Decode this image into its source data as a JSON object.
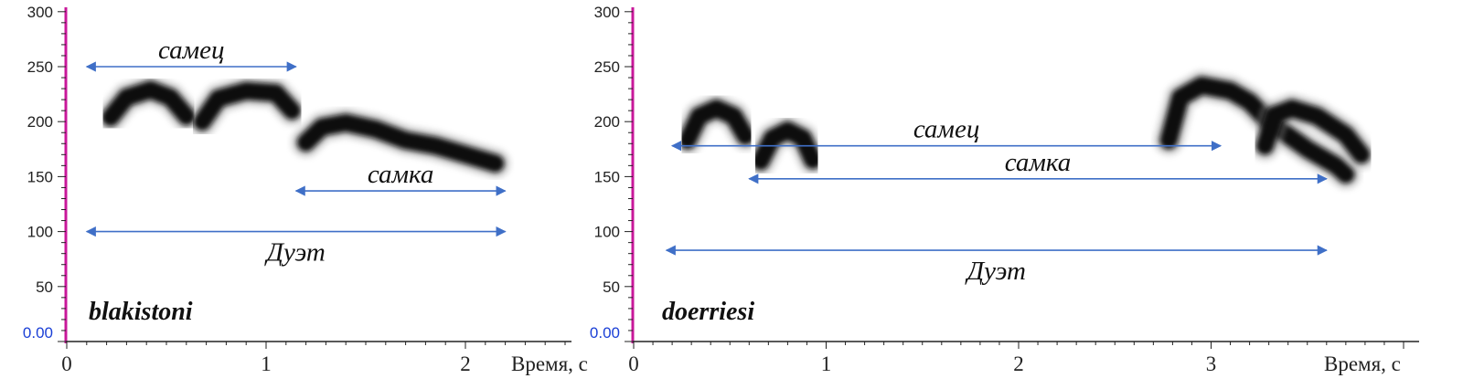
{
  "colors": {
    "axis": "#c8189a",
    "arrow": "#3f6fc7",
    "zero_label": "#1a3fd6",
    "ink": "#111111"
  },
  "chart_data": [
    {
      "type": "spectrogram",
      "title": "blakistoni",
      "xlabel": "Время, с",
      "xlim": [
        0,
        2.5
      ],
      "ylim": [
        0,
        300
      ],
      "xticks": [
        "0",
        "1",
        "2"
      ],
      "yticks": [
        "0.00",
        "50",
        "100",
        "150",
        "200",
        "250",
        "300"
      ],
      "segments": [
        {
          "points": [
            [
              0.22,
              204
            ],
            [
              0.3,
              222
            ],
            [
              0.42,
              229
            ],
            [
              0.52,
              222
            ],
            [
              0.6,
              205
            ]
          ]
        },
        {
          "points": [
            [
              0.68,
              200
            ],
            [
              0.76,
              221
            ],
            [
              0.9,
              228
            ],
            [
              1.05,
              226
            ],
            [
              1.13,
              210
            ]
          ]
        },
        {
          "points": [
            [
              1.2,
              181
            ],
            [
              1.28,
              195
            ],
            [
              1.4,
              199
            ],
            [
              1.55,
              193
            ],
            [
              1.7,
              183
            ],
            [
              1.85,
              178
            ],
            [
              2.0,
              170
            ],
            [
              2.15,
              162
            ]
          ]
        }
      ],
      "annotations": [
        {
          "label": "самец",
          "x": [
            0.1,
            1.15
          ],
          "y": 250
        },
        {
          "label": "самка",
          "x": [
            1.15,
            2.2
          ],
          "y": 137
        },
        {
          "label": "Дуэт",
          "x": [
            0.1,
            2.2
          ],
          "y": 100
        }
      ]
    },
    {
      "type": "spectrogram",
      "title": "doerriesi",
      "xlabel": "Время, с",
      "xlim": [
        0,
        4.0
      ],
      "ylim": [
        0,
        300
      ],
      "xticks": [
        "0",
        "1",
        "2",
        "3"
      ],
      "yticks": [
        "0.00",
        "50",
        "100",
        "150",
        "200",
        "250",
        "300"
      ],
      "segments": [
        {
          "points": [
            [
              0.28,
              183
            ],
            [
              0.34,
              205
            ],
            [
              0.43,
              212
            ],
            [
              0.52,
              205
            ],
            [
              0.58,
              187
            ]
          ]
        },
        {
          "points": [
            [
              0.66,
              164
            ],
            [
              0.72,
              185
            ],
            [
              0.8,
              192
            ],
            [
              0.88,
              185
            ],
            [
              0.93,
              165
            ]
          ]
        },
        {
          "points": [
            [
              2.78,
              183
            ],
            [
              2.84,
              222
            ],
            [
              2.95,
              233
            ],
            [
              3.1,
              228
            ],
            [
              3.2,
              218
            ],
            [
              3.3,
              200
            ],
            [
              3.5,
              175
            ],
            [
              3.65,
              160
            ],
            [
              3.7,
              152
            ]
          ]
        },
        {
          "points": [
            [
              3.28,
              178
            ],
            [
              3.33,
              206
            ],
            [
              3.42,
              212
            ],
            [
              3.55,
              205
            ],
            [
              3.7,
              188
            ],
            [
              3.78,
              170
            ]
          ]
        }
      ],
      "annotations": [
        {
          "label": "самец",
          "x": [
            0.2,
            3.05
          ],
          "y": 178
        },
        {
          "label": "самка",
          "x": [
            0.6,
            3.6
          ],
          "y": 148
        },
        {
          "label": "Дуэт",
          "x": [
            0.17,
            3.6
          ],
          "y": 83
        }
      ]
    }
  ]
}
